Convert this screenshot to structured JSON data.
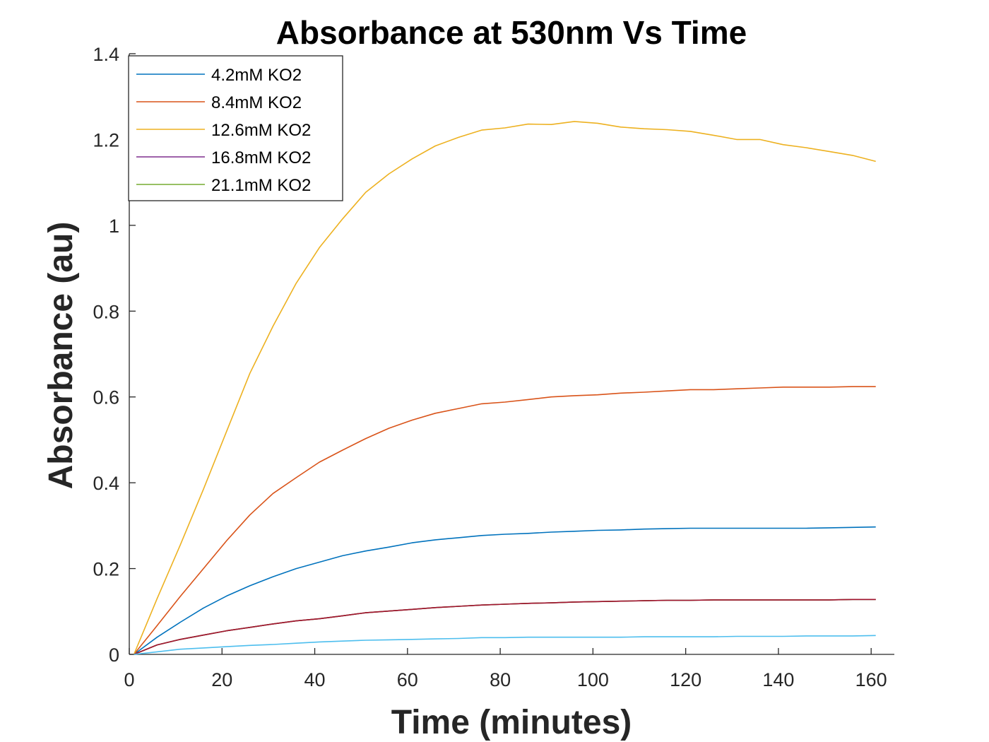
{
  "chart_data": {
    "type": "line",
    "title": "Absorbance at 530nm Vs Time",
    "xlabel": "Time (minutes)",
    "ylabel": "Absorbance (au)",
    "xlim": [
      0,
      165
    ],
    "ylim": [
      0,
      1.4
    ],
    "xticks": [
      0,
      20,
      40,
      60,
      80,
      100,
      120,
      140,
      160
    ],
    "yticks": [
      0,
      0.2,
      0.4,
      0.6,
      0.8,
      1,
      1.2,
      1.4
    ],
    "grid": false,
    "legend_position": "top-left",
    "x": [
      1,
      6,
      11,
      16,
      21,
      26,
      31,
      36,
      41,
      46,
      51,
      56,
      61,
      66,
      71,
      76,
      81,
      86,
      91,
      96,
      101,
      106,
      111,
      116,
      121,
      126,
      131,
      136,
      141,
      146,
      151,
      156,
      161
    ],
    "series": [
      {
        "name": "4.2mM KO2",
        "color": "#0072BD",
        "values": [
          0,
          0.04,
          0.075,
          0.108,
          0.136,
          0.16,
          0.181,
          0.2,
          0.215,
          0.23,
          0.241,
          0.25,
          0.26,
          0.267,
          0.272,
          0.277,
          0.28,
          0.282,
          0.285,
          0.287,
          0.289,
          0.29,
          0.292,
          0.293,
          0.294,
          0.294,
          0.294,
          0.294,
          0.294,
          0.294,
          0.295,
          0.296,
          0.297
        ]
      },
      {
        "name": "8.4mM KO2",
        "color": "#D95319",
        "values": [
          0,
          0.067,
          0.135,
          0.2,
          0.265,
          0.325,
          0.375,
          0.412,
          0.448,
          0.476,
          0.503,
          0.527,
          0.546,
          0.562,
          0.573,
          0.584,
          0.588,
          0.594,
          0.6,
          0.603,
          0.605,
          0.609,
          0.611,
          0.614,
          0.617,
          0.617,
          0.619,
          0.621,
          0.623,
          0.623,
          0.623,
          0.624,
          0.624
        ]
      },
      {
        "name": "12.6mM KO2",
        "color": "#EDB120",
        "values": [
          0,
          0.13,
          0.255,
          0.385,
          0.52,
          0.655,
          0.765,
          0.865,
          0.948,
          1.015,
          1.077,
          1.12,
          1.155,
          1.185,
          1.205,
          1.222,
          1.227,
          1.236,
          1.235,
          1.242,
          1.238,
          1.229,
          1.225,
          1.223,
          1.219,
          1.21,
          1.2,
          1.2,
          1.188,
          1.181,
          1.172,
          1.163,
          1.149
        ]
      },
      {
        "name": "16.8mM KO2",
        "color": "#7E2F8E",
        "values": [
          0,
          0.022,
          0.035,
          0.045,
          0.055,
          0.063,
          0.071,
          0.078,
          0.083,
          0.09,
          0.097,
          0.101,
          0.105,
          0.109,
          0.112,
          0.115,
          0.117,
          0.119,
          0.12,
          0.122,
          0.123,
          0.124,
          0.125,
          0.126,
          0.126,
          0.127,
          0.127,
          0.127,
          0.127,
          0.127,
          0.127,
          0.128,
          0.128
        ]
      },
      {
        "name": "21.1mM KO2",
        "color": "#77AC30",
        "values": [
          0,
          0.022,
          0.035,
          0.045,
          0.055,
          0.063,
          0.071,
          0.078,
          0.083,
          0.09,
          0.097,
          0.101,
          0.105,
          0.109,
          0.112,
          0.115,
          0.117,
          0.119,
          0.12,
          0.122,
          0.123,
          0.124,
          0.125,
          0.126,
          0.126,
          0.127,
          0.127,
          0.127,
          0.127,
          0.127,
          0.127,
          0.128,
          0.128
        ]
      },
      {
        "color": "#A2142F",
        "values": [
          0,
          0.022,
          0.035,
          0.045,
          0.055,
          0.063,
          0.071,
          0.078,
          0.083,
          0.09,
          0.097,
          0.101,
          0.105,
          0.109,
          0.112,
          0.115,
          0.117,
          0.119,
          0.12,
          0.122,
          0.123,
          0.124,
          0.125,
          0.126,
          0.126,
          0.127,
          0.127,
          0.127,
          0.127,
          0.127,
          0.127,
          0.128,
          0.128
        ]
      },
      {
        "color": "#4DBEEE",
        "values": [
          0,
          0.006,
          0.012,
          0.015,
          0.018,
          0.021,
          0.023,
          0.026,
          0.029,
          0.031,
          0.033,
          0.034,
          0.035,
          0.036,
          0.037,
          0.039,
          0.039,
          0.04,
          0.04,
          0.04,
          0.04,
          0.04,
          0.041,
          0.041,
          0.041,
          0.041,
          0.042,
          0.042,
          0.042,
          0.043,
          0.043,
          0.043,
          0.044
        ]
      }
    ]
  }
}
